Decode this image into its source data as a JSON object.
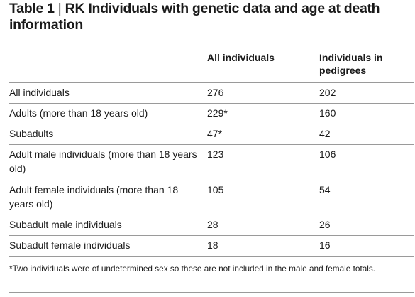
{
  "table": {
    "title_label": "Table 1",
    "title_separator": "|",
    "title_text": "RK Individuals with genetic data and age at death information",
    "headers": {
      "col2": "All individuals",
      "col3": "Individuals in pedigrees"
    },
    "rows": [
      {
        "label": "All individuals",
        "all": "276",
        "pedigrees": "202"
      },
      {
        "label": "Adults (more than 18 years old)",
        "all": "229*",
        "pedigrees": "160"
      },
      {
        "label": "Subadults",
        "all": "47*",
        "pedigrees": "42"
      },
      {
        "label": "Adult male individuals (more than 18 years old)",
        "all": "123",
        "pedigrees": "106"
      },
      {
        "label": "Adult female individuals (more than 18 years old)",
        "all": "105",
        "pedigrees": "54"
      },
      {
        "label": "Subadult male individuals",
        "all": "28",
        "pedigrees": "26"
      },
      {
        "label": "Subadult female individuals",
        "all": "18",
        "pedigrees": "16"
      }
    ],
    "footnote": "*Two individuals were of undetermined sex so these are not included in the male and female totals."
  }
}
